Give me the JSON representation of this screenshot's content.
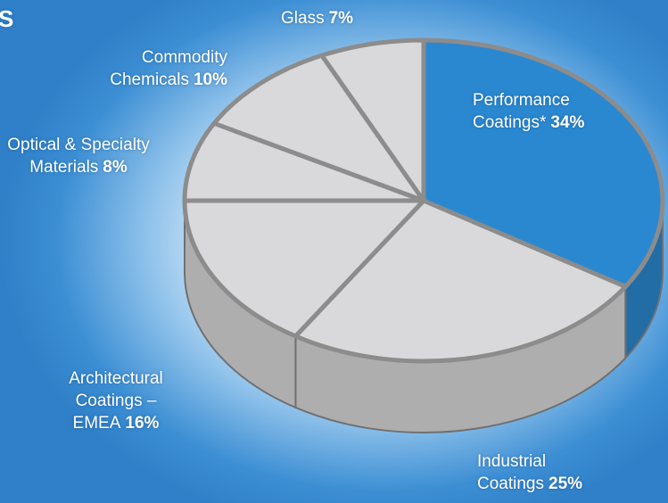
{
  "chart_data": {
    "type": "pie",
    "title": "S",
    "categories": [
      "Performance Coatings*",
      "Industrial Coatings",
      "Architectural Coatings – EMEA",
      "Optical & Specialty Materials",
      "Commodity Chemicals",
      "Glass"
    ],
    "values": [
      34,
      25,
      16,
      8,
      10,
      7
    ],
    "value_labels": [
      "34%",
      "25%",
      "16%",
      "8%",
      "10%",
      "7%"
    ],
    "colors": [
      "#2a88d0",
      "#d9d9db",
      "#d9d9db",
      "#d9d9db",
      "#d9d9db",
      "#d9d9db"
    ]
  }
}
